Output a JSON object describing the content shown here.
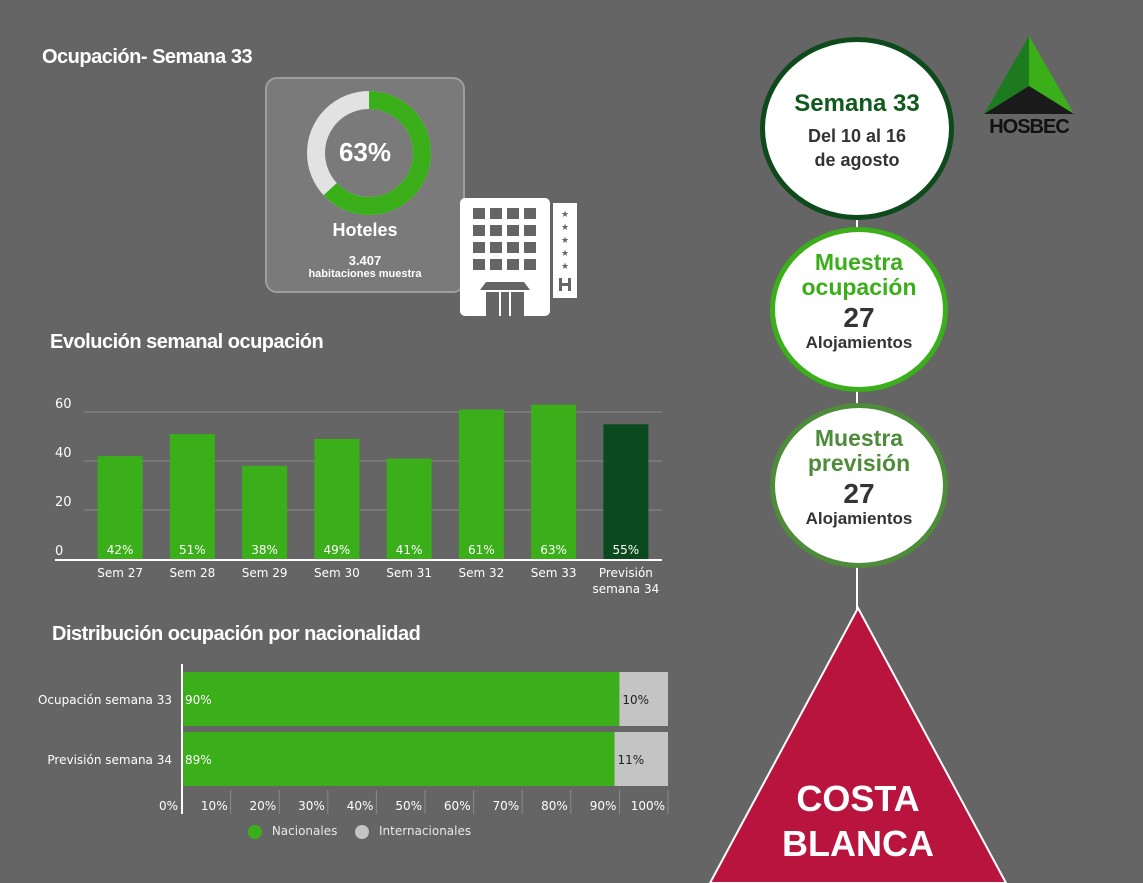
{
  "colors": {
    "green": "#3aaf1a",
    "dark_green": "#0b4a1f",
    "gray_light": "#c4c4c4",
    "crimson": "#b9143d",
    "background": "#656565"
  },
  "occupancy": {
    "title": "Ocupación- Semana 33",
    "value": 63,
    "value_label": "63%",
    "category": "Hoteles",
    "rooms": "3.407",
    "rooms_label": "habitaciones muestra"
  },
  "weekly": {
    "title": "Evolución semanal ocupación"
  },
  "nationality": {
    "title": "Distribución ocupación por nacionalidad"
  },
  "right_panel": {
    "week_title": "Semana 33",
    "week_dates_1": "Del 10 al 16",
    "week_dates_2": "de agosto",
    "sample_occ_title_1": "Muestra",
    "sample_occ_title_2": "ocupación",
    "sample_occ_count": "27",
    "sample_occ_unit": "Alojamientos",
    "sample_fc_title_1": "Muestra",
    "sample_fc_title_2": "previsión",
    "sample_fc_count": "27",
    "sample_fc_unit": "Alojamientos",
    "region_1": "COSTA",
    "region_2": "BLANCA",
    "logo_text": "HOSBEC"
  },
  "chart_data": [
    {
      "type": "bar",
      "title": "Evolución semanal ocupación",
      "categories": [
        "Sem 27",
        "Sem 28",
        "Sem 29",
        "Sem 30",
        "Sem 31",
        "Sem 32",
        "Sem 33",
        "Previsión semana 34"
      ],
      "values": [
        42,
        51,
        38,
        49,
        41,
        61,
        63,
        55
      ],
      "data_labels": [
        "42%",
        "51%",
        "38%",
        "49%",
        "41%",
        "61%",
        "63%",
        "55%"
      ],
      "ylim": [
        0,
        60
      ],
      "yticks": [
        0,
        20,
        40,
        60
      ],
      "grid": true,
      "highlight_last": true
    },
    {
      "type": "bar",
      "orientation": "horizontal",
      "stacked": true,
      "title": "Distribución ocupación por nacionalidad",
      "categories": [
        "Ocupación semana 33",
        "Previsión semana 34"
      ],
      "series": [
        {
          "name": "Nacionales",
          "values": [
            90,
            89
          ],
          "labels": [
            "90%",
            "89%"
          ]
        },
        {
          "name": "Internacionales",
          "values": [
            10,
            11
          ],
          "labels": [
            "10%",
            "11%"
          ]
        }
      ],
      "xlim": [
        0,
        100
      ],
      "xticks": [
        "0%",
        "10%",
        "20%",
        "30%",
        "40%",
        "50%",
        "60%",
        "70%",
        "80%",
        "90%",
        "100%"
      ],
      "legend": "bottom"
    }
  ]
}
